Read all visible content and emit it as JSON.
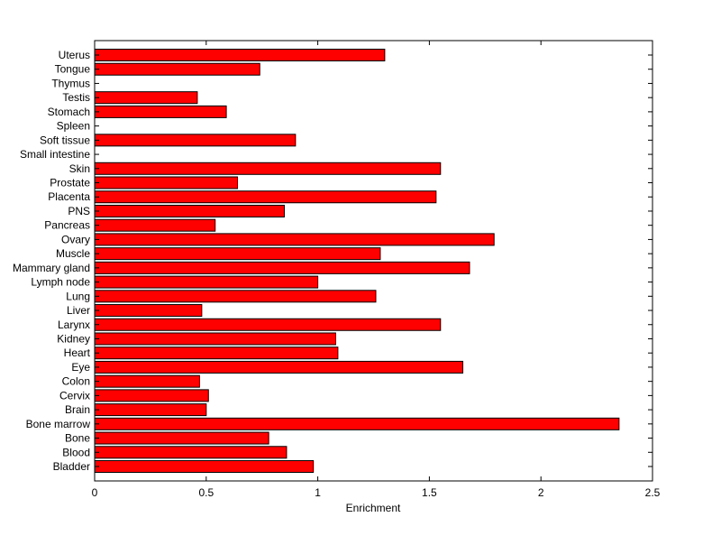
{
  "chart_data": {
    "type": "bar",
    "orientation": "horizontal",
    "title": "",
    "xlabel": "Enrichment",
    "ylabel": "",
    "xlim": [
      0,
      2.5
    ],
    "xticks": [
      0,
      0.5,
      1,
      1.5,
      2,
      2.5
    ],
    "xtick_labels": [
      "0",
      "0.5",
      "1",
      "1.5",
      "2",
      "2.5"
    ],
    "grid": false,
    "bar_color": "#ff0000",
    "edge_color": "#000000",
    "categories": [
      "Bladder",
      "Blood",
      "Bone",
      "Bone marrow",
      "Brain",
      "Cervix",
      "Colon",
      "Eye",
      "Heart",
      "Kidney",
      "Larynx",
      "Liver",
      "Lung",
      "Lymph node",
      "Mammary gland",
      "Muscle",
      "Ovary",
      "Pancreas",
      "PNS",
      "Placenta",
      "Prostate",
      "Skin",
      "Small intestine",
      "Soft tissue",
      "Spleen",
      "Stomach",
      "Testis",
      "Thymus",
      "Tongue",
      "Uterus"
    ],
    "values": [
      0.98,
      0.86,
      0.78,
      2.35,
      0.5,
      0.51,
      0.47,
      1.65,
      1.09,
      1.08,
      1.55,
      0.48,
      1.26,
      1.0,
      1.68,
      1.28,
      1.79,
      0.54,
      0.85,
      1.53,
      0.64,
      1.55,
      0,
      0.9,
      0,
      0.59,
      0.46,
      0,
      0.74,
      1.3
    ]
  }
}
